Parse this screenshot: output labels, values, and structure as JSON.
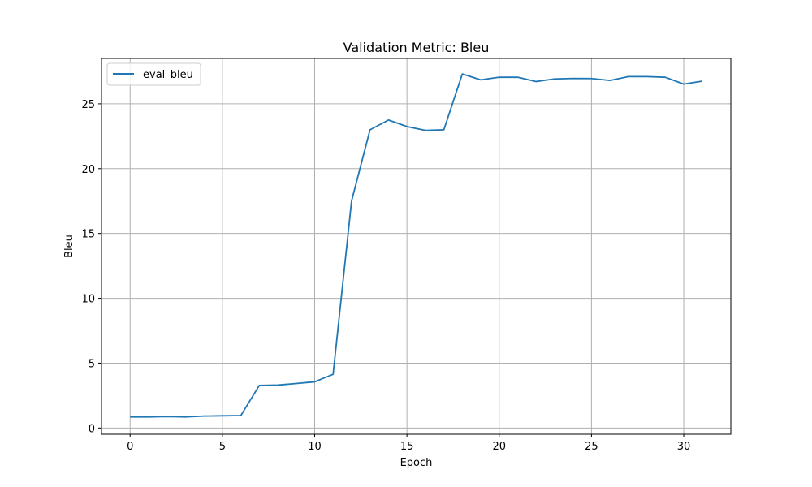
{
  "chart_data": {
    "type": "line",
    "title": "Validation Metric: Bleu",
    "xlabel": "Epoch",
    "ylabel": "Bleu",
    "xlim": [
      -1.55,
      32.55
    ],
    "ylim": [
      -0.48,
      28.5
    ],
    "xticks": [
      0,
      5,
      10,
      15,
      20,
      25,
      30
    ],
    "yticks": [
      0,
      5,
      10,
      15,
      20,
      25
    ],
    "grid": true,
    "legend_position": "top-left",
    "series": [
      {
        "name": "eval_bleu",
        "color": "#1f77b4",
        "x": [
          0,
          1,
          2,
          3,
          4,
          5,
          6,
          7,
          8,
          9,
          10,
          11,
          12,
          13,
          14,
          15,
          16,
          17,
          18,
          19,
          20,
          21,
          22,
          23,
          24,
          25,
          26,
          27,
          28,
          29,
          30,
          31
        ],
        "y": [
          0.85,
          0.85,
          0.88,
          0.85,
          0.92,
          0.94,
          0.96,
          3.28,
          3.31,
          3.43,
          3.56,
          4.14,
          17.5,
          23.0,
          23.75,
          23.25,
          22.95,
          23.0,
          27.3,
          26.85,
          27.05,
          27.05,
          26.72,
          26.92,
          26.96,
          26.95,
          26.8,
          27.1,
          27.1,
          27.05,
          26.52,
          26.75
        ]
      }
    ]
  }
}
